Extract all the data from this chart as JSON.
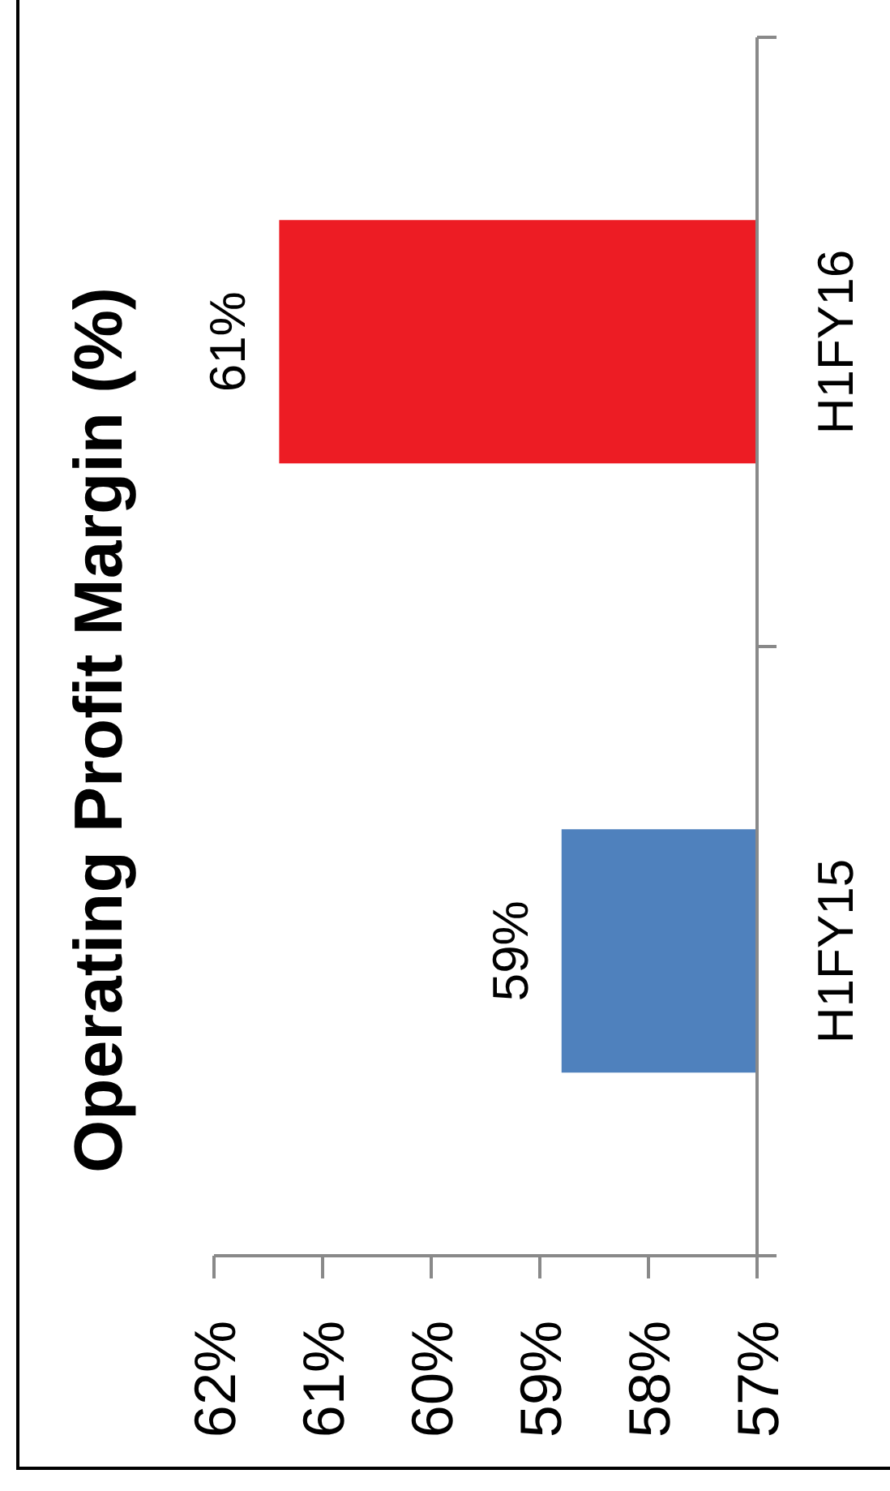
{
  "chart_data": {
    "type": "bar",
    "orientation": "horizontal",
    "title": "Operating Profit Margin (%)",
    "categories": [
      "H1FY16",
      "H1FY15"
    ],
    "values": [
      61.4,
      58.8
    ],
    "colors": [
      "#ed1c24",
      "#4f81bd"
    ],
    "value_labels": [
      "61%",
      "59%"
    ],
    "xlim": [
      62,
      57
    ],
    "xticks": [
      {
        "value": 62,
        "label": "62%"
      },
      {
        "value": 61,
        "label": "61%"
      },
      {
        "value": 60,
        "label": "60%"
      },
      {
        "value": 59,
        "label": "59%"
      },
      {
        "value": 58,
        "label": "58%"
      },
      {
        "value": 57,
        "label": "57%"
      }
    ]
  }
}
